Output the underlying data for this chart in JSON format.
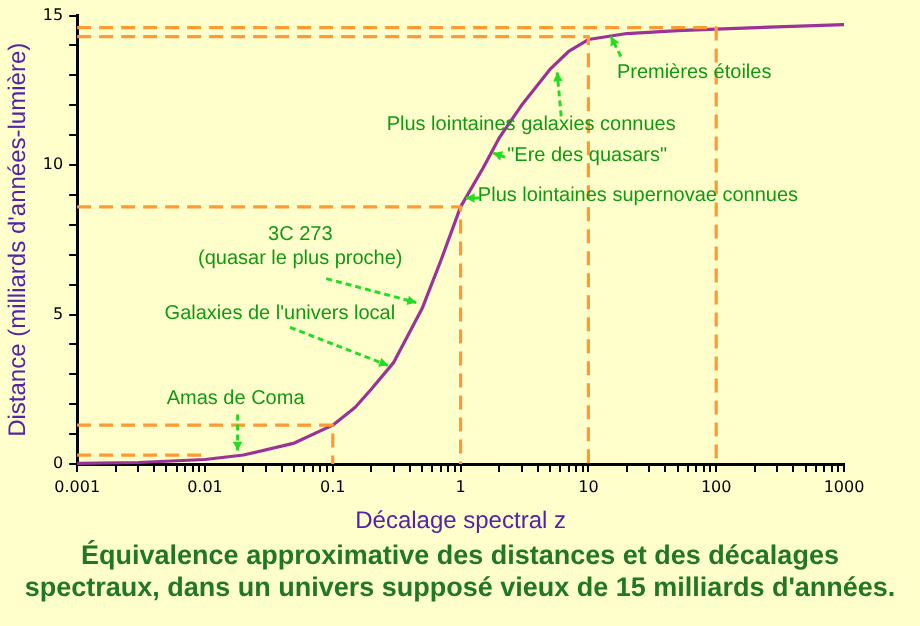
{
  "chart_data": {
    "type": "line",
    "title": "Équivalence approximative des distances et des décalages spectraux, dans un univers supposé vieux de 15 milliards d'années.",
    "xlabel": "Décalage spectral z",
    "ylabel": "Distance (milliards d'années-lumière)",
    "log": "x",
    "grid": false,
    "legend": false,
    "marker": "none",
    "xlim": [
      0.001,
      1000
    ],
    "ylim": [
      0,
      15
    ],
    "xticks": [
      0.001,
      {
        "value": 0.002,
        "label": null
      },
      {
        "value": 0.003,
        "label": null
      },
      {
        "value": 0.004,
        "label": null
      },
      {
        "value": 0.005,
        "label": null
      },
      {
        "value": 0.006,
        "label": null
      },
      {
        "value": 0.007,
        "label": null
      },
      {
        "value": 0.008,
        "label": null
      },
      {
        "value": 0.009,
        "label": null
      },
      0.01,
      {
        "value": 0.02,
        "label": null
      },
      {
        "value": 0.03,
        "label": null
      },
      {
        "value": 0.04,
        "label": null
      },
      {
        "value": 0.05,
        "label": null
      },
      {
        "value": 0.06,
        "label": null
      },
      {
        "value": 0.07,
        "label": null
      },
      {
        "value": 0.08,
        "label": null
      },
      {
        "value": 0.09,
        "label": null
      },
      0.1,
      {
        "value": 0.2,
        "label": null
      },
      {
        "value": 0.3,
        "label": null
      },
      {
        "value": 0.4,
        "label": null
      },
      {
        "value": 0.5,
        "label": null
      },
      {
        "value": 0.6,
        "label": null
      },
      {
        "value": 0.7,
        "label": null
      },
      {
        "value": 0.8,
        "label": null
      },
      {
        "value": 0.9,
        "label": null
      },
      1,
      {
        "value": 2,
        "label": null
      },
      {
        "value": 3,
        "label": null
      },
      {
        "value": 4,
        "label": null
      },
      {
        "value": 5,
        "label": null
      },
      {
        "value": 6,
        "label": null
      },
      {
        "value": 7,
        "label": null
      },
      {
        "value": 8,
        "label": null
      },
      {
        "value": 9,
        "label": null
      },
      10,
      {
        "value": 20,
        "label": null
      },
      {
        "value": 30,
        "label": null
      },
      {
        "value": 40,
        "label": null
      },
      {
        "value": 50,
        "label": null
      },
      {
        "value": 60,
        "label": null
      },
      {
        "value": 70,
        "label": null
      },
      {
        "value": 80,
        "label": null
      },
      {
        "value": 90,
        "label": null
      },
      100,
      {
        "value": 200,
        "label": null
      },
      {
        "value": 300,
        "label": null
      },
      {
        "value": 400,
        "label": null
      },
      {
        "value": 500,
        "label": null
      },
      {
        "value": 600,
        "label": null
      },
      {
        "value": 700,
        "label": null
      },
      {
        "value": 800,
        "label": null
      },
      {
        "value": 900,
        "label": null
      },
      1000
    ],
    "yticks": [
      0,
      {
        "value": 1,
        "label": null
      },
      {
        "value": 2,
        "label": null
      },
      {
        "value": 3,
        "label": null
      },
      {
        "value": 4,
        "label": null
      },
      5,
      {
        "value": 6,
        "label": null
      },
      {
        "value": 7,
        "label": null
      },
      {
        "value": 8,
        "label": null
      },
      {
        "value": 9,
        "label": null
      },
      10,
      {
        "value": 11,
        "label": null
      },
      {
        "value": 12,
        "label": null
      },
      {
        "value": 13,
        "label": null
      },
      {
        "value": 14,
        "label": null
      },
      15
    ],
    "series": [
      {
        "color": "#993399",
        "line_style": "solid",
        "x": [
          0.001,
          0.003,
          0.01,
          0.02,
          0.05,
          0.1,
          0.15,
          0.2,
          0.3,
          0.5,
          0.7,
          1,
          1.5,
          2,
          3,
          5,
          7,
          10,
          20,
          50,
          100,
          1000
        ],
        "values": [
          0.02,
          0.05,
          0.15,
          0.3,
          0.7,
          1.3,
          1.9,
          2.5,
          3.4,
          5.2,
          6.8,
          8.6,
          9.9,
          10.9,
          12.0,
          13.2,
          13.8,
          14.2,
          14.4,
          14.5,
          14.55,
          14.7
        ]
      },
      {
        "color": "#ff9933",
        "line_style": "dashed",
        "x": [
          0.001,
          100,
          100
        ],
        "values": [
          14.6,
          14.6,
          0
        ]
      },
      {
        "color": "#ff9933",
        "line_style": "dashed",
        "x": [
          0.001,
          10,
          10
        ],
        "values": [
          14.3,
          14.3,
          0
        ]
      },
      {
        "color": "#ff9933",
        "line_style": "dashed",
        "x": [
          0.001,
          1,
          1
        ],
        "values": [
          8.6,
          8.6,
          0
        ]
      },
      {
        "color": "#ff9933",
        "line_style": "dashed",
        "x": [
          0.001,
          0.1,
          0.1
        ],
        "values": [
          1.3,
          1.3,
          0
        ]
      },
      {
        "color": "#ff9933",
        "line_style": "dashed",
        "x": [
          0.001,
          0.01
        ],
        "values": [
          0.3,
          0.3
        ]
      }
    ],
    "annotations": [
      {
        "text": "Premières étoiles",
        "x": 15,
        "y": 14.3
      },
      {
        "text": "Plus lointaines galaxies connues",
        "x": 5.7,
        "y": 13.1
      },
      {
        "text": "\"Ere des quasars\"",
        "x": 1.8,
        "y": 10.4
      },
      {
        "text": "Plus lointaines supernovae connues",
        "x": 1.1,
        "y": 8.9
      },
      {
        "text": "3C 273\n(quasar le plus proche)",
        "x": 0.45,
        "y": 5.4
      },
      {
        "text": "Galaxies de l'univers local",
        "x": 0.27,
        "y": 3.3
      },
      {
        "text": "Amas de Coma",
        "x": 0.018,
        "y": 0.45
      }
    ]
  }
}
